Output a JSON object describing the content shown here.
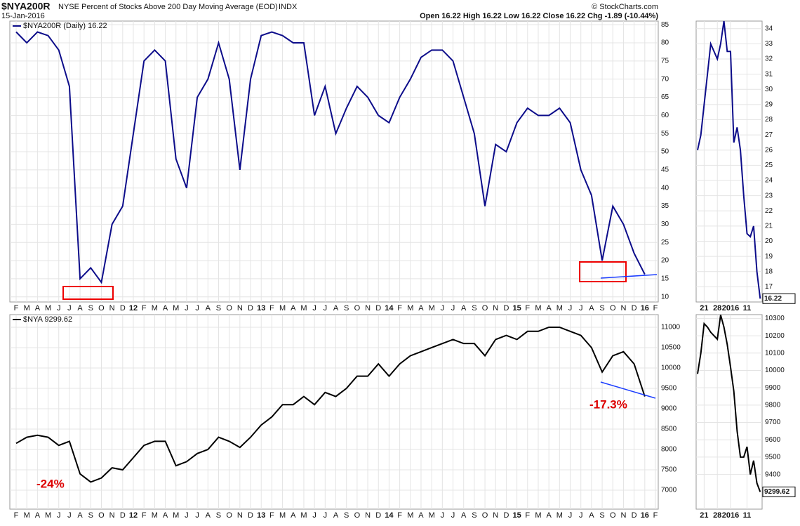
{
  "header": {
    "symbol": "$NYA200R",
    "description": "NYSE Percent of Stocks Above 200 Day Moving Average (EOD)",
    "exchange": "INDX",
    "date": "15-Jan-2016",
    "quote": "Open 16.22  High 16.22  Low 16.22  Close 16.22  Chg -1.89 (-10.44%)",
    "source": "© StockCharts.com"
  },
  "chart_data": [
    {
      "type": "line",
      "legend_text": "$NYA200R (Daily) 16.22",
      "color": "#0c0c8a",
      "categories": [
        "F",
        "M",
        "A",
        "M",
        "J",
        "J",
        "A",
        "S",
        "O",
        "N",
        "D",
        "12",
        "F",
        "M",
        "A",
        "M",
        "J",
        "J",
        "A",
        "S",
        "O",
        "N",
        "D",
        "13",
        "F",
        "M",
        "A",
        "M",
        "J",
        "J",
        "A",
        "S",
        "O",
        "N",
        "D",
        "14",
        "F",
        "M",
        "A",
        "M",
        "J",
        "J",
        "A",
        "S",
        "O",
        "N",
        "D",
        "15",
        "F",
        "M",
        "A",
        "M",
        "J",
        "J",
        "A",
        "S",
        "O",
        "N",
        "D",
        "16",
        "F"
      ],
      "values": [
        83,
        80,
        83,
        82,
        78,
        68,
        15,
        18,
        14,
        30,
        35,
        55,
        75,
        78,
        75,
        48,
        40,
        65,
        70,
        80,
        70,
        45,
        70,
        82,
        83,
        82,
        80,
        80,
        60,
        68,
        55,
        62,
        68,
        65,
        60,
        58,
        65,
        70,
        76,
        78,
        78,
        75,
        65,
        55,
        35,
        52,
        50,
        58,
        62,
        60,
        60,
        62,
        58,
        45,
        38,
        20,
        35,
        30,
        22,
        16.22,
        null
      ],
      "ylim": [
        8.6,
        86
      ],
      "yticks": [
        10,
        15,
        20,
        25,
        30,
        35,
        40,
        45,
        50,
        55,
        60,
        65,
        70,
        75,
        80,
        85
      ],
      "grid": true
    },
    {
      "type": "line",
      "legend_text": "$NYA 9299.62",
      "color": "#000000",
      "categories": [
        "F",
        "M",
        "A",
        "M",
        "J",
        "J",
        "A",
        "S",
        "O",
        "N",
        "D",
        "12",
        "F",
        "M",
        "A",
        "M",
        "J",
        "J",
        "A",
        "S",
        "O",
        "N",
        "D",
        "13",
        "F",
        "M",
        "A",
        "M",
        "J",
        "J",
        "A",
        "S",
        "O",
        "N",
        "D",
        "14",
        "F",
        "M",
        "A",
        "M",
        "J",
        "J",
        "A",
        "S",
        "O",
        "N",
        "D",
        "15",
        "F",
        "M",
        "A",
        "M",
        "J",
        "J",
        "A",
        "S",
        "O",
        "N",
        "D",
        "16",
        "F"
      ],
      "values": [
        8150,
        8300,
        8350,
        8300,
        8100,
        8200,
        7400,
        7200,
        7300,
        7550,
        7500,
        7800,
        8100,
        8200,
        8200,
        7600,
        7700,
        7900,
        8000,
        8300,
        8200,
        8050,
        8300,
        8600,
        8800,
        9100,
        9100,
        9300,
        9100,
        9400,
        9300,
        9500,
        9800,
        9800,
        10100,
        9800,
        10100,
        10300,
        10400,
        10500,
        10600,
        10700,
        10600,
        10600,
        10300,
        10700,
        10800,
        10700,
        10900,
        10900,
        11000,
        11000,
        10900,
        10800,
        10500,
        9900,
        10300,
        10400,
        10100,
        9299.62,
        null
      ],
      "ylim": [
        6535,
        11310
      ],
      "yticks": [
        7000,
        7500,
        8000,
        8500,
        9000,
        9500,
        10000,
        10500,
        11000
      ],
      "grid": true,
      "annotations": [
        "-24%",
        "-17.3%"
      ]
    },
    {
      "type": "line",
      "color": "#0c0c8a",
      "categories": [
        null,
        null,
        "21",
        null,
        null,
        null,
        "28",
        null,
        null,
        null,
        "2016",
        null,
        null,
        null,
        null,
        "11",
        null,
        null,
        null,
        null
      ],
      "values": [
        26,
        27,
        29,
        31,
        33,
        32.5,
        32,
        33,
        34.5,
        32.5,
        32.5,
        26.5,
        27.5,
        26,
        23,
        20.5,
        20.3,
        21,
        18,
        16.22
      ],
      "ylim": [
        16,
        34.5
      ],
      "yticks": [
        17,
        18,
        19,
        20,
        21,
        22,
        23,
        24,
        25,
        26,
        27,
        28,
        29,
        30,
        31,
        32,
        33,
        34
      ],
      "grid": true
    },
    {
      "type": "line",
      "color": "#000000",
      "categories": [
        null,
        null,
        "21",
        null,
        null,
        null,
        "28",
        null,
        null,
        null,
        "2016",
        null,
        null,
        null,
        null,
        "11",
        null,
        null,
        null,
        null
      ],
      "values": [
        9980,
        10100,
        10270,
        10250,
        10220,
        10200,
        10180,
        10320,
        10250,
        10150,
        10020,
        9880,
        9650,
        9500,
        9500,
        9560,
        9400,
        9480,
        9350,
        9299.62
      ],
      "ylim": [
        9200,
        10322
      ],
      "yticks": [
        9400,
        9500,
        9600,
        9700,
        9800,
        9900,
        10000,
        10100,
        10200,
        10300
      ],
      "grid": true
    }
  ]
}
